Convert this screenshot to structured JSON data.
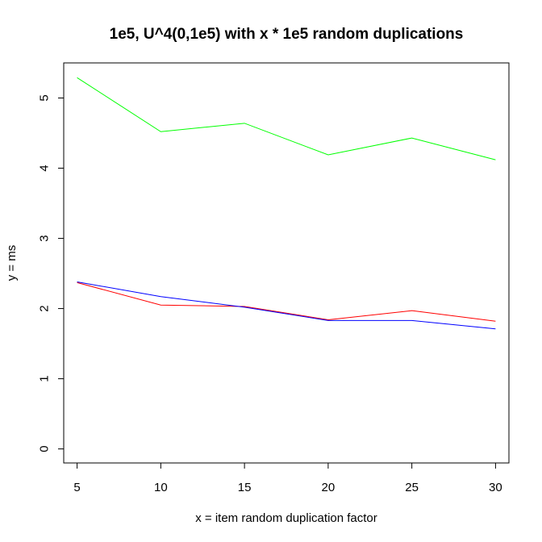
{
  "chart_data": {
    "type": "line",
    "title": "1e5, U^4(0,1e5) with x * 1e5 random duplications",
    "xlabel": "x = item random duplication factor",
    "ylabel": "y = ms",
    "x": [
      5,
      10,
      15,
      20,
      25,
      30
    ],
    "xlim": [
      4.2,
      30.8
    ],
    "ylim": [
      -0.2,
      5.5
    ],
    "xticks": [
      "5",
      "10",
      "15",
      "20",
      "25",
      "30"
    ],
    "yticks": [
      "0",
      "1",
      "2",
      "3",
      "4",
      "5"
    ],
    "grid": false,
    "series": [
      {
        "color": "#00ff00",
        "values": [
          5.29,
          4.52,
          4.64,
          4.19,
          4.43,
          4.12
        ]
      },
      {
        "color": "#ff0000",
        "values": [
          2.37,
          2.05,
          2.03,
          1.84,
          1.97,
          1.82
        ]
      },
      {
        "color": "#0000ff",
        "values": [
          2.38,
          2.17,
          2.02,
          1.83,
          1.83,
          1.71
        ]
      }
    ]
  }
}
